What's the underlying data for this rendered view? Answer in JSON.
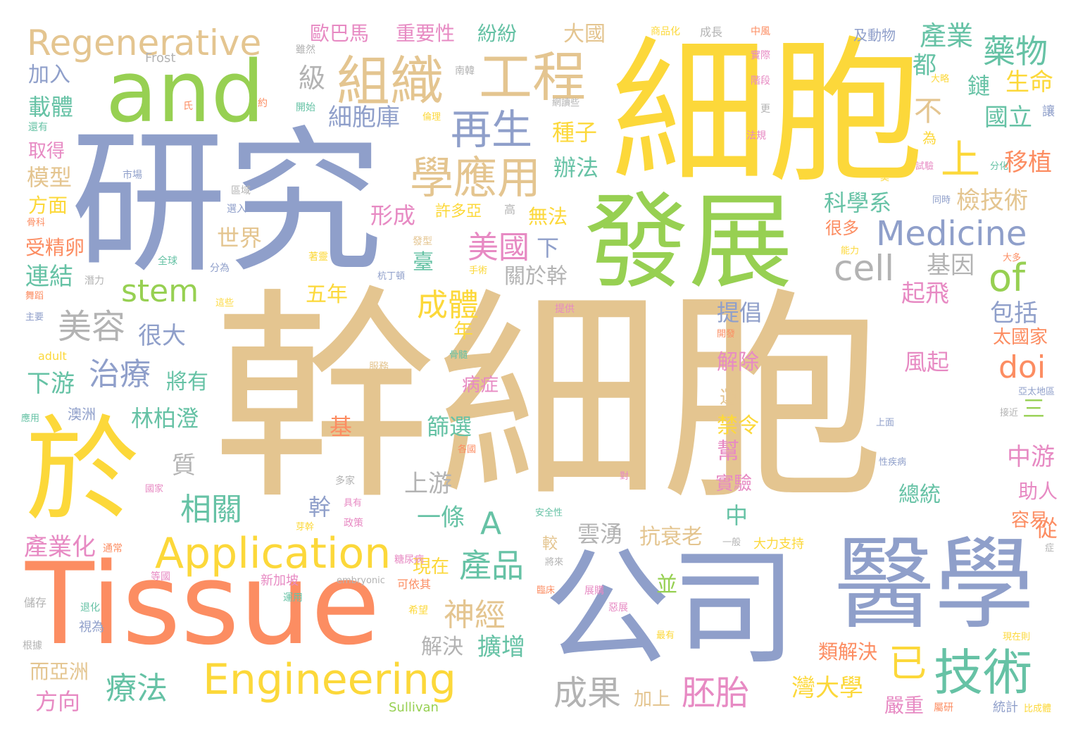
{
  "words": [
    {
      "text": "幹細胞",
      "color": "#e4c590"
    },
    {
      "text": "細胞",
      "color": "#fcd83a"
    },
    {
      "text": "研究",
      "color": "#8f9fca"
    },
    {
      "text": "發展",
      "color": "#97d052"
    },
    {
      "text": "公司",
      "color": "#8f9fca"
    },
    {
      "text": "醫學",
      "color": "#8f9fca"
    },
    {
      "text": "Tissue",
      "color": "#fc8d62"
    },
    {
      "text": "於",
      "color": "#fcd83a"
    },
    {
      "text": "and",
      "color": "#97d052"
    },
    {
      "text": "組織",
      "color": "#e4c590"
    },
    {
      "text": "工程",
      "color": "#e4c590"
    },
    {
      "text": "Regenerative",
      "color": "#e4c590"
    },
    {
      "text": "Engineering",
      "color": "#fcd83a"
    },
    {
      "text": "Application",
      "color": "#fcd83a"
    },
    {
      "text": "技術",
      "color": "#66c2a5"
    },
    {
      "text": "再生",
      "color": "#8f9fca"
    },
    {
      "text": "學應用",
      "color": "#e4c590"
    },
    {
      "text": "Medicine",
      "color": "#8f9fca"
    },
    {
      "text": "藥物",
      "color": "#66c2a5"
    },
    {
      "text": "產業",
      "color": "#66c2a5"
    },
    {
      "text": "stem",
      "color": "#97d052"
    },
    {
      "text": "美容",
      "color": "#b3b3b3"
    },
    {
      "text": "治療",
      "color": "#8f9fca"
    },
    {
      "text": "cell",
      "color": "#b3b3b3"
    },
    {
      "text": "of",
      "color": "#97d052"
    },
    {
      "text": "doi",
      "color": "#fc8d62"
    },
    {
      "text": "美國",
      "color": "#e78ac3"
    },
    {
      "text": "成體",
      "color": "#fcd83a"
    },
    {
      "text": "產品",
      "color": "#66c2a5"
    },
    {
      "text": "相關",
      "color": "#66c2a5"
    },
    {
      "text": "療法",
      "color": "#66c2a5"
    },
    {
      "text": "成果",
      "color": "#b3b3b3"
    },
    {
      "text": "胚胎",
      "color": "#e78ac3"
    },
    {
      "text": "神經",
      "color": "#e4c590"
    },
    {
      "text": "A",
      "color": "#66c2a5"
    },
    {
      "text": "上",
      "color": "#fcd83a"
    },
    {
      "text": "已",
      "color": "#fcd83a"
    },
    {
      "text": "歐巴馬",
      "color": "#e78ac3"
    },
    {
      "text": "重要性",
      "color": "#e78ac3"
    },
    {
      "text": "紛紛",
      "color": "#66c2a5"
    },
    {
      "text": "大國",
      "color": "#e4c590"
    },
    {
      "text": "細胞庫",
      "color": "#8f9fca"
    },
    {
      "text": "生命",
      "color": "#fcd83a"
    },
    {
      "text": "國立",
      "color": "#66c2a5"
    },
    {
      "text": "移植",
      "color": "#fc8d62"
    },
    {
      "text": "檢技術",
      "color": "#e4c590"
    },
    {
      "text": "科學系",
      "color": "#66c2a5"
    },
    {
      "text": "種子",
      "color": "#fcd83a"
    },
    {
      "text": "辦法",
      "color": "#66c2a5"
    },
    {
      "text": "形成",
      "color": "#e78ac3"
    },
    {
      "text": "許多亞",
      "color": "#fcd83a"
    },
    {
      "text": "無法",
      "color": "#fcd83a"
    },
    {
      "text": "世界",
      "color": "#e4c590"
    },
    {
      "text": "基因",
      "color": "#b3b3b3"
    },
    {
      "text": "起飛",
      "color": "#e78ac3"
    },
    {
      "text": "包括",
      "color": "#8f9fca"
    },
    {
      "text": "提倡",
      "color": "#8f9fca"
    },
    {
      "text": "五年",
      "color": "#fcd83a"
    },
    {
      "text": "關於幹",
      "color": "#b3b3b3"
    },
    {
      "text": "很大",
      "color": "#8f9fca"
    },
    {
      "text": "將有",
      "color": "#66c2a5"
    },
    {
      "text": "林柏澄",
      "color": "#66c2a5"
    },
    {
      "text": "下游",
      "color": "#66c2a5"
    },
    {
      "text": "篩選",
      "color": "#66c2a5"
    },
    {
      "text": "解除",
      "color": "#e78ac3"
    },
    {
      "text": "風起",
      "color": "#e78ac3"
    },
    {
      "text": "禁令",
      "color": "#fcd83a"
    },
    {
      "text": "中游",
      "color": "#e78ac3"
    },
    {
      "text": "總統",
      "color": "#66c2a5"
    },
    {
      "text": "上游",
      "color": "#b3b3b3"
    },
    {
      "text": "一條",
      "color": "#66c2a5"
    },
    {
      "text": "實驗",
      "color": "#e78ac3"
    },
    {
      "text": "抗衰老",
      "color": "#e4c590"
    },
    {
      "text": "雲湧",
      "color": "#b3b3b3"
    },
    {
      "text": "產業化",
      "color": "#e78ac3"
    },
    {
      "text": "現在",
      "color": "#fcd83a"
    },
    {
      "text": "灣大學",
      "color": "#fcd83a"
    },
    {
      "text": "類解決",
      "color": "#fc8d62"
    },
    {
      "text": "嚴重",
      "color": "#e78ac3"
    },
    {
      "text": "擴增",
      "color": "#66c2a5"
    },
    {
      "text": "解決",
      "color": "#b3b3b3"
    },
    {
      "text": "方向",
      "color": "#e78ac3"
    },
    {
      "text": "而亞洲",
      "color": "#e4c590"
    },
    {
      "text": "加上",
      "color": "#e4c590"
    },
    {
      "text": "加入",
      "color": "#8f9fca"
    },
    {
      "text": "載體",
      "color": "#66c2a5"
    },
    {
      "text": "模型",
      "color": "#e4c590"
    },
    {
      "text": "方面",
      "color": "#fcd83a"
    },
    {
      "text": "取得",
      "color": "#e78ac3"
    },
    {
      "text": "受精卵",
      "color": "#fc8d62"
    },
    {
      "text": "連結",
      "color": "#66c2a5"
    },
    {
      "text": "助人",
      "color": "#e78ac3"
    },
    {
      "text": "容易",
      "color": "#fc8d62"
    },
    {
      "text": "太國家",
      "color": "#fc8d62"
    },
    {
      "text": "病症",
      "color": "#e78ac3"
    },
    {
      "text": "級",
      "color": "#b3b3b3"
    },
    {
      "text": "都",
      "color": "#66c2a5"
    },
    {
      "text": "鏈",
      "color": "#66c2a5"
    },
    {
      "text": "不",
      "color": "#e4c590"
    },
    {
      "text": "臺",
      "color": "#66c2a5"
    },
    {
      "text": "下",
      "color": "#8f9fca"
    },
    {
      "text": "年",
      "color": "#fcd83a"
    },
    {
      "text": "基",
      "color": "#fc8d62"
    },
    {
      "text": "質",
      "color": "#b3b3b3"
    },
    {
      "text": "幹",
      "color": "#8f9fca"
    },
    {
      "text": "中",
      "color": "#66c2a5"
    },
    {
      "text": "三",
      "color": "#97d052"
    },
    {
      "text": "從",
      "color": "#fc8d62"
    },
    {
      "text": "較",
      "color": "#e4c590"
    },
    {
      "text": "並",
      "color": "#97d052"
    },
    {
      "text": "幫",
      "color": "#e78ac3"
    },
    {
      "text": "運",
      "color": "#e4c590"
    },
    {
      "text": "很多",
      "color": "#fc8d62"
    },
    {
      "text": "及動物",
      "color": "#8f9fca"
    },
    {
      "text": "商品化",
      "color": "#fcd83a"
    },
    {
      "text": "成長",
      "color": "#b3b3b3"
    },
    {
      "text": "中風",
      "color": "#fc8d62"
    },
    {
      "text": "實際",
      "color": "#e78ac3"
    },
    {
      "text": "階段",
      "color": "#e78ac3"
    },
    {
      "text": "大略",
      "color": "#fcd83a"
    },
    {
      "text": "雖然",
      "color": "#b3b3b3"
    },
    {
      "text": "Frost",
      "color": "#b3b3b3"
    },
    {
      "text": "南韓",
      "color": "#b3b3b3"
    },
    {
      "text": "氏",
      "color": "#fc8d62"
    },
    {
      "text": "約",
      "color": "#fc8d62"
    },
    {
      "text": "開始",
      "color": "#66c2a5"
    },
    {
      "text": "網讀些",
      "color": "#b3b3b3"
    },
    {
      "text": "倫理",
      "color": "#fcd83a"
    },
    {
      "text": "更",
      "color": "#b3b3b3"
    },
    {
      "text": "法規",
      "color": "#e78ac3"
    },
    {
      "text": "讓",
      "color": "#8f9fca"
    },
    {
      "text": "為",
      "color": "#fcd83a"
    },
    {
      "text": "還有",
      "color": "#66c2a5"
    },
    {
      "text": "市場",
      "color": "#8f9fca"
    },
    {
      "text": "區域",
      "color": "#b3b3b3"
    },
    {
      "text": "選入",
      "color": "#8f9fca"
    },
    {
      "text": "骨科",
      "color": "#fc8d62"
    },
    {
      "text": "發型",
      "color": "#e4c590"
    },
    {
      "text": "高",
      "color": "#b3b3b3"
    },
    {
      "text": "全球",
      "color": "#66c2a5"
    },
    {
      "text": "分為",
      "color": "#8f9fca"
    },
    {
      "text": "潛力",
      "color": "#b3b3b3"
    },
    {
      "text": "舞蹈",
      "color": "#fc8d62"
    },
    {
      "text": "著靈",
      "color": "#fcd83a"
    },
    {
      "text": "手術",
      "color": "#fcd83a"
    },
    {
      "text": "杭丁頓",
      "color": "#8f9fca"
    },
    {
      "text": "這些",
      "color": "#fcd83a"
    },
    {
      "text": "提供",
      "color": "#e78ac3"
    },
    {
      "text": "主要",
      "color": "#8f9fca"
    },
    {
      "text": "adult",
      "color": "#fcd83a"
    },
    {
      "text": "服務",
      "color": "#e4c590"
    },
    {
      "text": "骨髓",
      "color": "#66c2a5"
    },
    {
      "text": "開發",
      "color": "#fc8d62"
    },
    {
      "text": "應用",
      "color": "#66c2a5"
    },
    {
      "text": "澳洲",
      "color": "#8f9fca"
    },
    {
      "text": "各國",
      "color": "#fc8d62"
    },
    {
      "text": "國家",
      "color": "#e78ac3"
    },
    {
      "text": "多家",
      "color": "#b3b3b3"
    },
    {
      "text": "具有",
      "color": "#e78ac3"
    },
    {
      "text": "芽幹",
      "color": "#fcd83a"
    },
    {
      "text": "政策",
      "color": "#e78ac3"
    },
    {
      "text": "通常",
      "color": "#fc8d62"
    },
    {
      "text": "安全性",
      "color": "#66c2a5"
    },
    {
      "text": "一般",
      "color": "#b3b3b3"
    },
    {
      "text": "大力支持",
      "color": "#fcd83a"
    },
    {
      "text": "糖尿病",
      "color": "#e78ac3"
    },
    {
      "text": "將來",
      "color": "#b3b3b3"
    },
    {
      "text": "等國",
      "color": "#e78ac3"
    },
    {
      "text": "新加坡",
      "color": "#e78ac3"
    },
    {
      "text": "embryonic",
      "color": "#b3b3b3"
    },
    {
      "text": "可依其",
      "color": "#fc8d62"
    },
    {
      "text": "臨床",
      "color": "#fc8d62"
    },
    {
      "text": "展購",
      "color": "#e78ac3"
    },
    {
      "text": "惡展",
      "color": "#e78ac3"
    },
    {
      "text": "儲存",
      "color": "#b3b3b3"
    },
    {
      "text": "退化",
      "color": "#66c2a5"
    },
    {
      "text": "視為",
      "color": "#8f9fca"
    },
    {
      "text": "運用",
      "color": "#66c2a5"
    },
    {
      "text": "希望",
      "color": "#fcd83a"
    },
    {
      "text": "根據",
      "color": "#b3b3b3"
    },
    {
      "text": "Sullivan",
      "color": "#97d052"
    },
    {
      "text": "最有",
      "color": "#fcd83a"
    },
    {
      "text": "統計",
      "color": "#8f9fca"
    },
    {
      "text": "比成體",
      "color": "#fcd83a"
    },
    {
      "text": "屬研",
      "color": "#fc8d62"
    },
    {
      "text": "現在則",
      "color": "#fcd83a"
    },
    {
      "text": "分化",
      "color": "#66c2a5"
    },
    {
      "text": "試驗",
      "color": "#e78ac3"
    },
    {
      "text": "同時",
      "color": "#8f9fca"
    },
    {
      "text": "能力",
      "color": "#fcd83a"
    },
    {
      "text": "大多",
      "color": "#fc8d62"
    },
    {
      "text": "亞太地區",
      "color": "#8f9fca"
    },
    {
      "text": "接近",
      "color": "#b3b3b3"
    },
    {
      "text": "上面",
      "color": "#8f9fca"
    },
    {
      "text": "性疾病",
      "color": "#8f9fca"
    },
    {
      "text": "對",
      "color": "#e78ac3"
    },
    {
      "text": "症",
      "color": "#b3b3b3"
    },
    {
      "text": "莫",
      "color": "#fcd83a"
    }
  ]
}
